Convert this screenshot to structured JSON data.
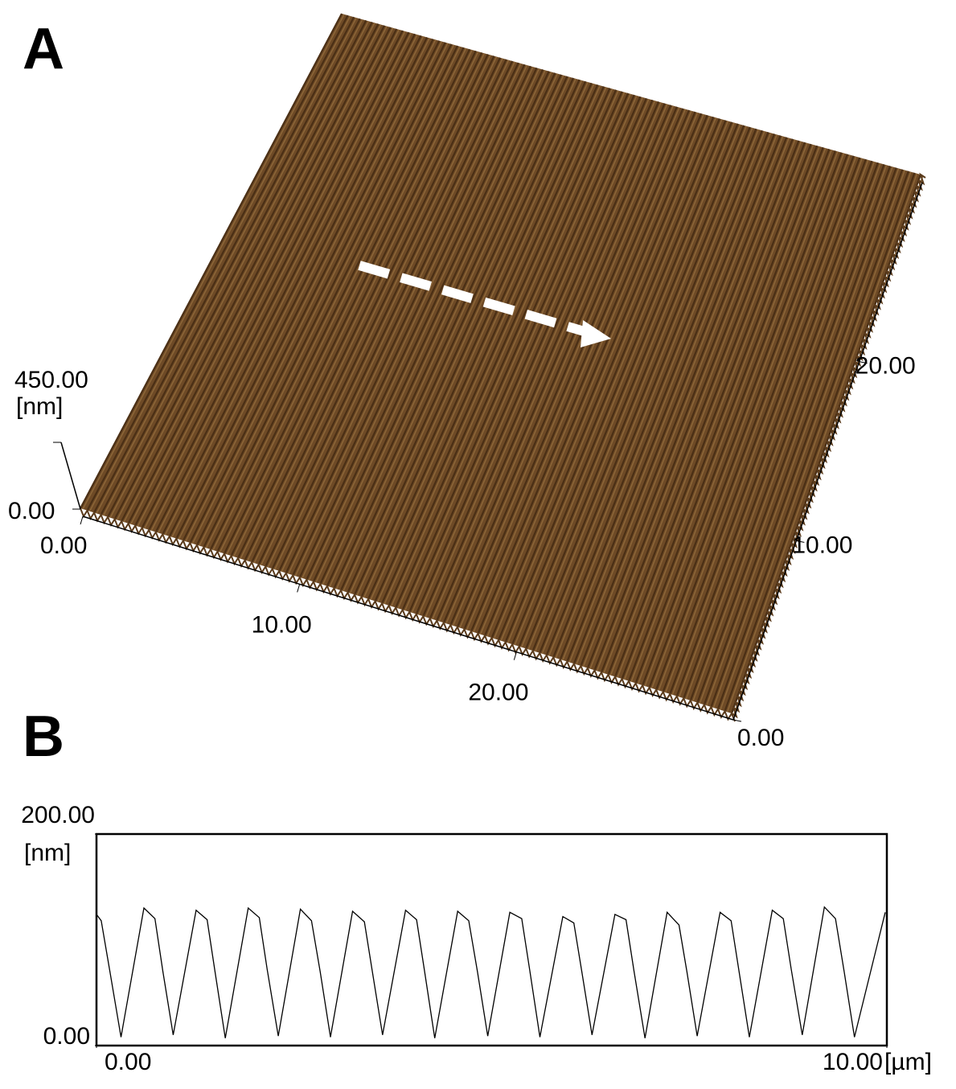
{
  "chart_data": [
    {
      "type": "surface3d",
      "panel": "A",
      "color": "#6e4a26",
      "zlabel": "[nm]",
      "zlim": [
        0,
        450
      ],
      "zticks": [
        {
          "value": 0,
          "label": "0.00"
        },
        {
          "value": 450,
          "label": "450.00"
        }
      ],
      "xlim": [
        0,
        30
      ],
      "xticks": [
        {
          "value": 0,
          "label": "0.00"
        },
        {
          "value": 10,
          "label": "10.00"
        },
        {
          "value": 20,
          "label": "20.00"
        }
      ],
      "ylim": [
        0,
        30
      ],
      "yticks": [
        {
          "value": 0,
          "label": "0.00"
        },
        {
          "value": 10,
          "label": "10.00"
        },
        {
          "value": 20,
          "label": "20.00"
        }
      ]
    },
    {
      "type": "line",
      "panel": "B",
      "color": "#000000",
      "ylabel": "[nm]",
      "xlabel": "[µm]",
      "xlim": [
        0,
        10
      ],
      "xticks": [
        {
          "value": 0,
          "label": "0.00"
        },
        {
          "value": 10,
          "label": "10.00"
        }
      ],
      "ylim": [
        0,
        200
      ],
      "yticks": [
        {
          "value": 0,
          "label": "0.00"
        },
        {
          "value": 200,
          "label": "200.00"
        }
      ],
      "x": [
        0,
        0.06,
        0.17,
        0.31,
        0.6,
        0.74,
        0.84,
        0.97,
        1.26,
        1.4,
        1.5,
        1.63,
        1.92,
        2.06,
        2.16,
        2.3,
        2.58,
        2.72,
        2.83,
        2.96,
        3.24,
        3.39,
        3.49,
        3.62,
        3.91,
        4.05,
        4.15,
        4.28,
        4.57,
        4.71,
        4.82,
        4.95,
        5.23,
        5.38,
        5.48,
        5.61,
        5.9,
        6.04,
        6.14,
        6.27,
        6.56,
        6.7,
        6.8,
        6.94,
        7.22,
        7.37,
        7.47,
        7.6,
        7.89,
        8.03,
        8.13,
        8.26,
        8.55,
        8.69,
        8.79,
        8.93,
        9.21,
        9.35,
        9.46,
        9.59,
        9.98
      ],
      "values": [
        124,
        118,
        70,
        8,
        130,
        120,
        70,
        10,
        128,
        119,
        70,
        7,
        130,
        121,
        72,
        9,
        129,
        118,
        70,
        8,
        127,
        117,
        70,
        10,
        128,
        119,
        71,
        7,
        127,
        118,
        70,
        9,
        126,
        120,
        72,
        8,
        122,
        116,
        70,
        10,
        124,
        119,
        71,
        7,
        126,
        114,
        70,
        9,
        126,
        118,
        70,
        8,
        128,
        120,
        72,
        10,
        131,
        120,
        70,
        8,
        126
      ]
    }
  ]
}
